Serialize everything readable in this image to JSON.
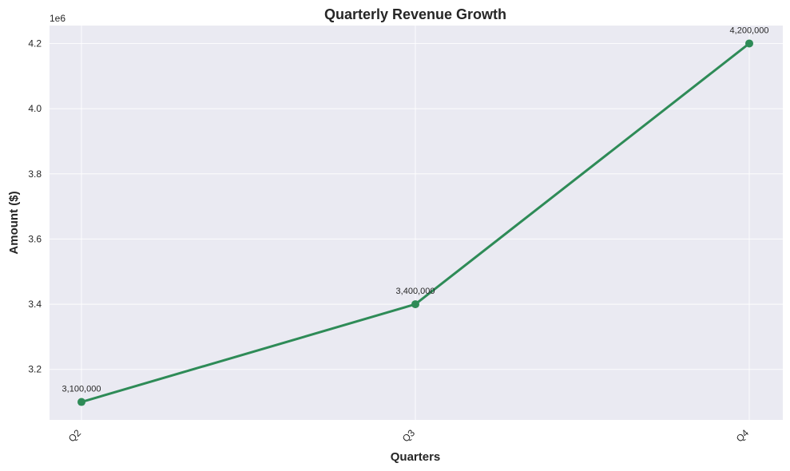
{
  "chart_data": {
    "type": "line",
    "title": "Quarterly Revenue Growth",
    "xlabel": "Quarters",
    "ylabel": "Amount ($)",
    "y_offset_label": "1e6",
    "categories": [
      "Q2",
      "Q3",
      "Q4"
    ],
    "values": [
      3100000,
      3400000,
      4200000
    ],
    "data_labels": [
      "3,100,000",
      "3,400,000",
      "4,200,000"
    ],
    "ylim": [
      3045000,
      4255000
    ],
    "yticks": [
      3.2,
      3.4,
      3.6,
      3.8,
      4.0,
      4.2
    ],
    "ytick_labels": [
      "3.2",
      "3.4",
      "3.6",
      "3.8",
      "4.0",
      "4.2"
    ],
    "grid": true,
    "colors": {
      "line": "#2e8b57",
      "background": "#eaeaf2"
    }
  }
}
